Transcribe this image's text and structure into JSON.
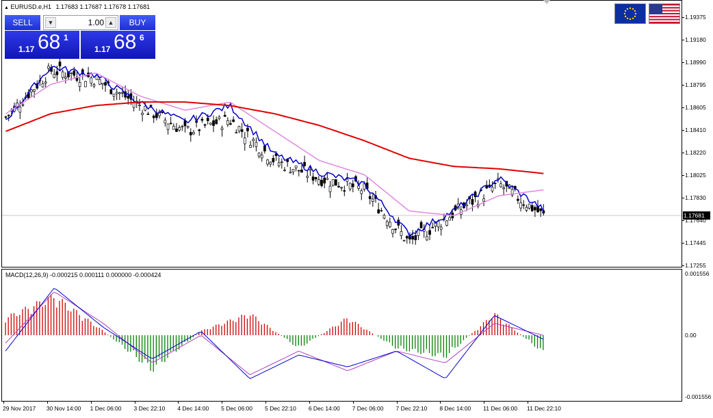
{
  "window": {
    "symbol_title": "EURUSD.e,H1",
    "ohlc": "1.17683 1.17687 1.17678 1.17681"
  },
  "trade_panel": {
    "sell_label": "SELL",
    "buy_label": "BUY",
    "lot_value": "1.00",
    "lot_down_arrow": "▼",
    "lot_up_arrow": "▲",
    "sell_price_prefix": "1.17",
    "sell_price_big": "68",
    "sell_price_sup": "1",
    "buy_price_prefix": "1.17",
    "buy_price_big": "68",
    "buy_price_sup": "6",
    "sell_color": "#2334d9",
    "buy_color": "#2334d9"
  },
  "flags": {
    "eu": "eu-flag-icon",
    "us": "us-flag-icon"
  },
  "price_axis": {
    "labels": [
      "1.19375",
      "1.19180",
      "1.18990",
      "1.18795",
      "1.18605",
      "1.18410",
      "1.18220",
      "1.18025",
      "1.17830",
      "1.17640",
      "1.17445",
      "1.17255"
    ],
    "current_price": "1.17681"
  },
  "macd": {
    "title": "MACD(12,26,9) -0.000215 0.000111 0.000000 -0.000424",
    "axis_labels": [
      "0.001556",
      "0.00",
      "-0.001556"
    ]
  },
  "time_axis": {
    "labels": [
      "29 Nov 2017",
      "30 Nov 14:00",
      "1 Dec 06:00",
      "3 Dec 22:10",
      "4 Dec 14:00",
      "5 Dec 06:00",
      "5 Dec 22:10",
      "6 Dec 14:00",
      "7 Dec 06:00",
      "7 Dec 22:10",
      "8 Dec 14:00",
      "11 Dec 06:00",
      "11 Dec 22:10"
    ]
  },
  "chart_data": {
    "type": "line",
    "title": "EURUSD.e,H1",
    "ylim": [
      1.17255,
      1.19375
    ],
    "x": [
      "29 Nov 2017",
      "30 Nov 14:00",
      "1 Dec 06:00",
      "3 Dec 22:10",
      "4 Dec 14:00",
      "5 Dec 06:00",
      "5 Dec 22:10",
      "6 Dec 14:00",
      "7 Dec 06:00",
      "7 Dec 22:10",
      "8 Dec 14:00",
      "11 Dec 06:00",
      "11 Dec 22:10"
    ],
    "series": [
      {
        "name": "",
        "color": "#000000",
        "values": [
          1.1852,
          1.1892,
          1.1885,
          1.1862,
          1.184,
          1.185,
          1.1815,
          1.18,
          1.179,
          1.1745,
          1.177,
          1.1795,
          1.1768
        ]
      },
      {
        "name": "",
        "color": "#0000cc",
        "values": [
          1.185,
          1.1895,
          1.1888,
          1.1864,
          1.1848,
          1.1862,
          1.182,
          1.1805,
          1.1795,
          1.1752,
          1.1772,
          1.18,
          1.1773
        ]
      },
      {
        "name": "",
        "color": "#e088e0",
        "values": [
          1.1855,
          1.188,
          1.189,
          1.187,
          1.1858,
          1.1865,
          1.184,
          1.1815,
          1.1803,
          1.1772,
          1.1768,
          1.1785,
          1.179
        ]
      },
      {
        "name": "",
        "color": "#e00000",
        "values": [
          1.184,
          1.1855,
          1.1862,
          1.1865,
          1.1865,
          1.1862,
          1.1855,
          1.1845,
          1.1832,
          1.1817,
          1.181,
          1.1808,
          1.1804
        ]
      }
    ],
    "macd": {
      "ylim": [
        -0.001556,
        0.001556
      ],
      "histogram": [
        0.0004,
        0.0009,
        0.0001,
        -0.0008,
        0.0001,
        0.0005,
        -0.0003,
        0.0004,
        -0.0003,
        -0.0005,
        0.0005,
        -0.0004
      ],
      "main_line": [
        -0.0004,
        0.0012,
        0.0002,
        -0.0006,
        0.0001,
        -0.0011,
        -0.0005,
        -0.0008,
        -0.0004,
        -0.0011,
        0.0005,
        -0.0001
      ],
      "signal_line": [
        -0.0002,
        0.0011,
        0.0003,
        -0.0007,
        0.0,
        -0.001,
        -0.0004,
        -0.0009,
        -0.0004,
        -0.0007,
        0.0003,
        0.0
      ],
      "histogram_pos_color": "#cc0000",
      "histogram_neg_color": "#008000",
      "main_color": "#0000cc",
      "signal_color": "#b040c0"
    }
  }
}
